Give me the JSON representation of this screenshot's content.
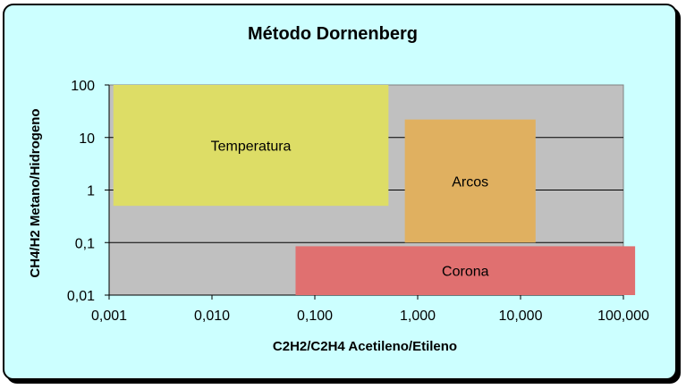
{
  "chart_data": {
    "type": "area",
    "title": "Método Dornenberg",
    "xlabel": "C2H2/C2H4 Acetileno/Etileno",
    "ylabel": "CH4/H2 Metano/Hidrogeno",
    "x_scale": "log",
    "y_scale": "log",
    "xlim": [
      0.001,
      100
    ],
    "ylim": [
      0.01,
      100
    ],
    "x_ticks": [
      {
        "value": 0.001,
        "label": "0,001"
      },
      {
        "value": 0.01,
        "label": "0,010"
      },
      {
        "value": 0.1,
        "label": "0,100"
      },
      {
        "value": 1,
        "label": "1,000"
      },
      {
        "value": 10,
        "label": "10,000"
      },
      {
        "value": 100,
        "label": "100,000"
      }
    ],
    "y_ticks": [
      {
        "value": 0.01,
        "label": "0,01"
      },
      {
        "value": 0.1,
        "label": "0,1"
      },
      {
        "value": 1,
        "label": "1"
      },
      {
        "value": 10,
        "label": "10"
      },
      {
        "value": 100,
        "label": "100"
      }
    ],
    "grid": "horizontal",
    "regions": [
      {
        "name": "Temperatura",
        "x": [
          0.0011,
          0.52
        ],
        "y": [
          0.5,
          100
        ],
        "color": "#dddd66"
      },
      {
        "name": "Arcos",
        "x": [
          0.75,
          14
        ],
        "y": [
          0.1,
          22
        ],
        "color": "#e0b060"
      },
      {
        "name": "Corona",
        "x": [
          0.065,
          130
        ],
        "y": [
          0.01,
          0.085
        ],
        "color": "#e07070"
      }
    ],
    "colors": {
      "background": "#ccffff",
      "plot_area": "#c0c0c0"
    }
  }
}
